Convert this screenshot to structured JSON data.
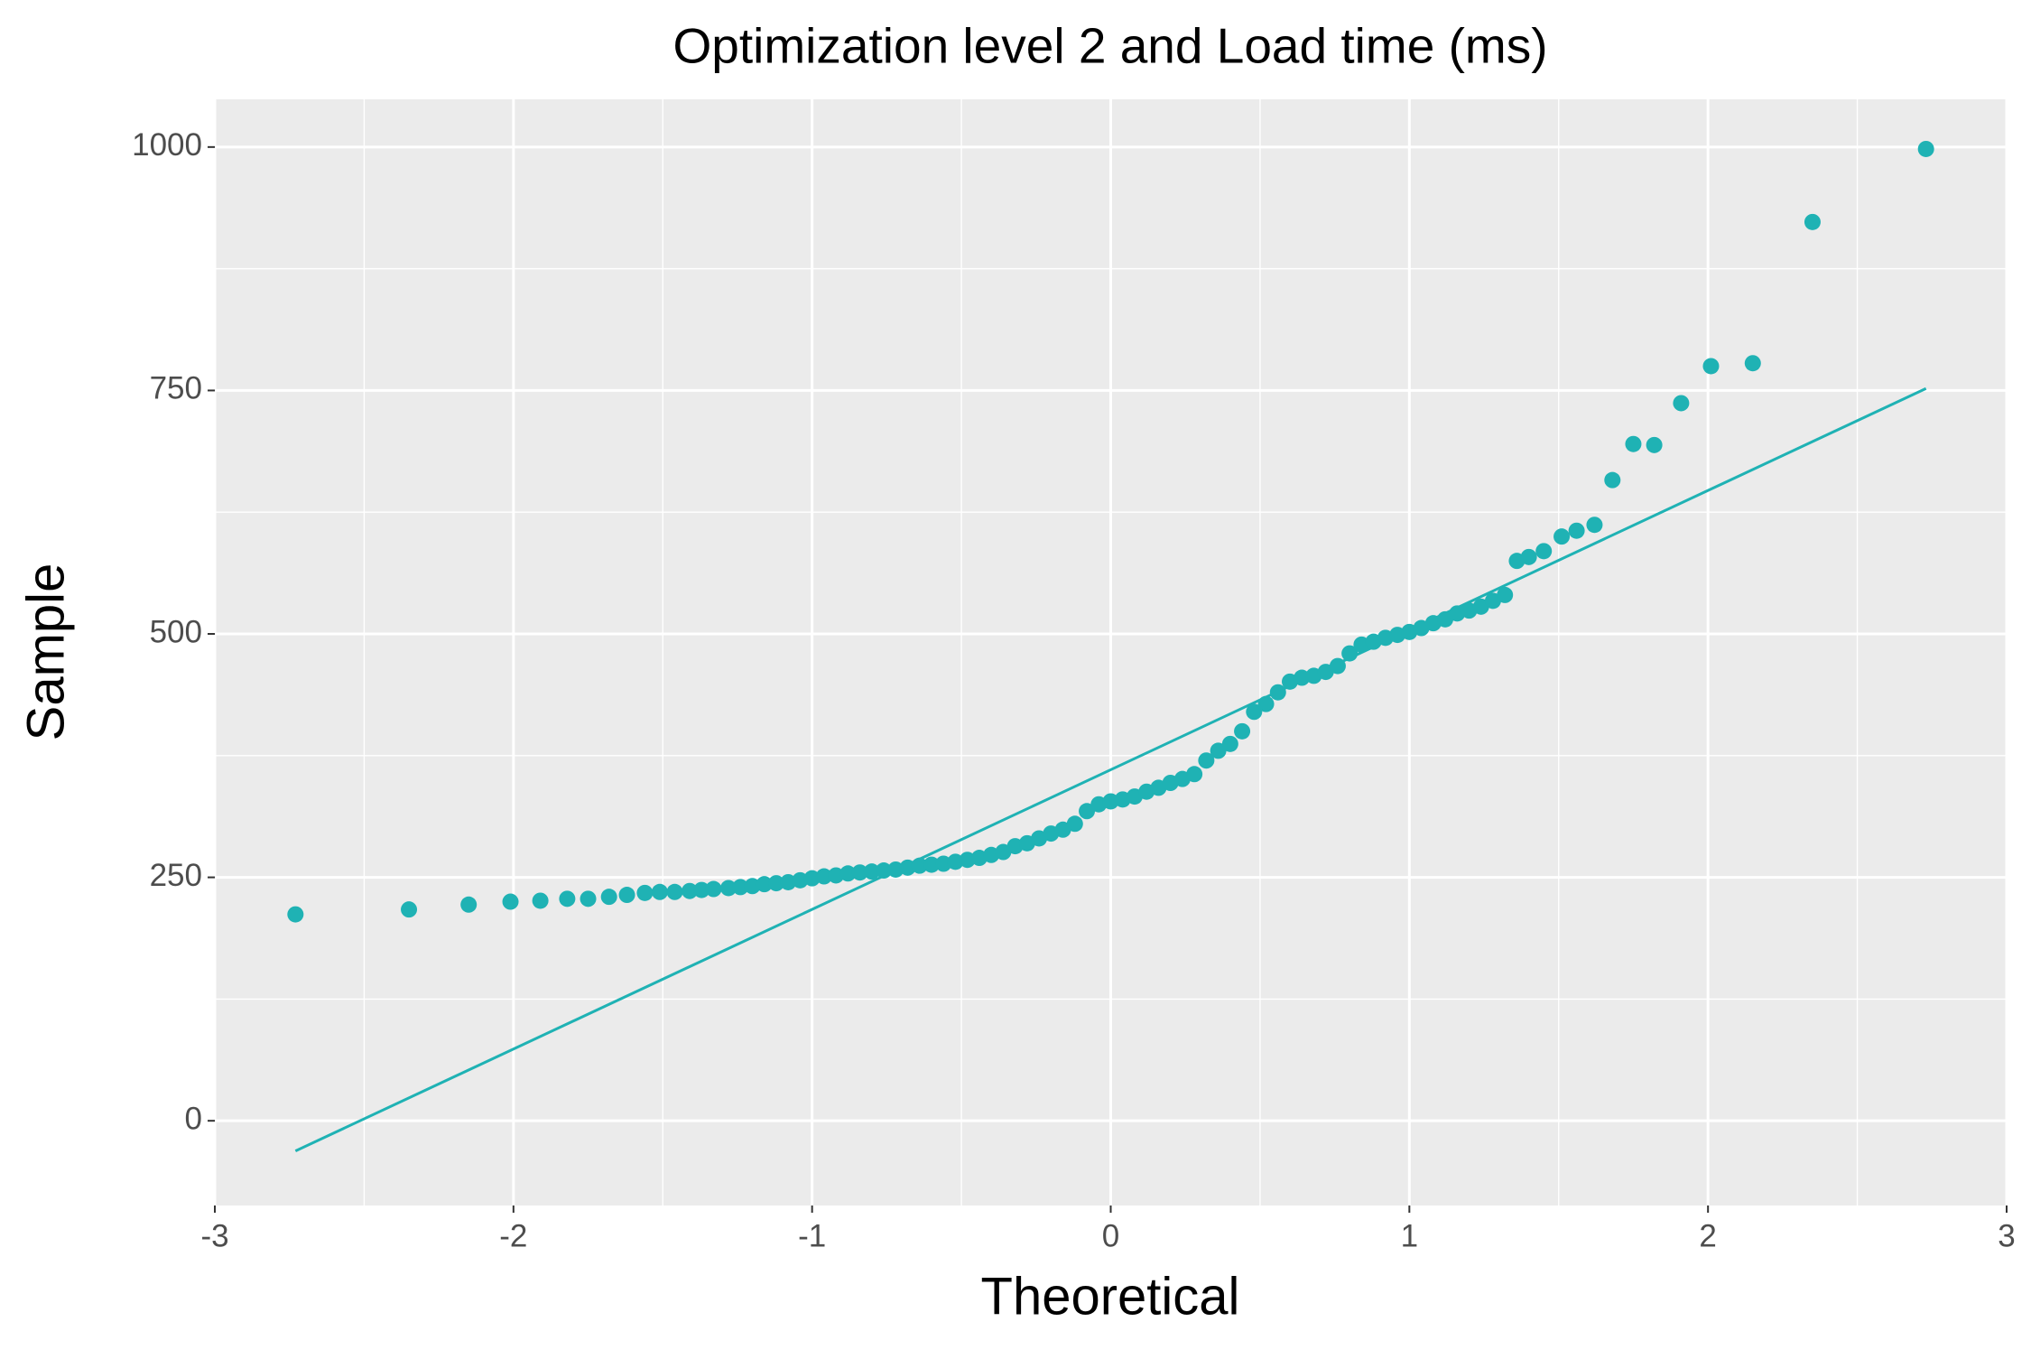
{
  "chart_data": {
    "type": "scatter",
    "title": "Optimization level 2 and Load time (ms)",
    "x_label": "Theoretical",
    "y_label": "Sample",
    "xlim": [
      -3,
      3
    ],
    "ylim": [
      -87,
      1049
    ],
    "xticks": [
      -3,
      -2,
      -1,
      0,
      1,
      2,
      3
    ],
    "yticks": [
      0,
      250,
      500,
      750,
      1000
    ],
    "grid": true,
    "color": "#1fb2b4",
    "x": [
      -2.73,
      -2.35,
      -2.15,
      -2.01,
      -1.91,
      -1.82,
      -1.75,
      -1.68,
      -1.62,
      -1.56,
      -1.51,
      -1.46,
      -1.41,
      -1.37,
      -1.33,
      -1.28,
      -1.24,
      -1.2,
      -1.16,
      -1.12,
      -1.08,
      -1.04,
      -1.0,
      -0.96,
      -0.92,
      -0.88,
      -0.84,
      -0.8,
      -0.76,
      -0.72,
      -0.68,
      -0.64,
      -0.6,
      -0.56,
      -0.52,
      -0.48,
      -0.44,
      -0.4,
      -0.36,
      -0.32,
      -0.28,
      -0.24,
      -0.2,
      -0.16,
      -0.12,
      -0.08,
      -0.04,
      0.0,
      0.04,
      0.08,
      0.12,
      0.16,
      0.2,
      0.24,
      0.28,
      0.32,
      0.36,
      0.4,
      0.44,
      0.48,
      0.52,
      0.56,
      0.6,
      0.64,
      0.68,
      0.72,
      0.76,
      0.8,
      0.84,
      0.88,
      0.92,
      0.96,
      1.0,
      1.04,
      1.08,
      1.12,
      1.16,
      1.2,
      1.24,
      1.28,
      1.32,
      1.36,
      1.4,
      1.45,
      1.51,
      1.56,
      1.62,
      1.68,
      1.75,
      1.82,
      1.91,
      2.01,
      2.15,
      2.35,
      2.73
    ],
    "values": [
      212,
      217,
      222,
      225,
      226,
      228,
      228,
      230,
      232,
      234,
      235,
      235,
      236,
      237,
      238,
      239,
      240,
      241,
      243,
      244,
      245,
      247,
      249,
      251,
      252,
      254,
      255,
      256,
      257,
      258,
      260,
      262,
      263,
      264,
      266,
      268,
      270,
      273,
      276,
      282,
      285,
      290,
      295,
      299,
      305,
      318,
      325,
      328,
      330,
      333,
      338,
      342,
      347,
      351,
      356,
      370,
      380,
      387,
      400,
      420,
      428,
      440,
      451,
      455,
      457,
      461,
      467,
      480,
      489,
      492,
      496,
      499,
      502,
      506,
      511,
      515,
      521,
      524,
      528,
      534,
      540,
      575,
      579,
      585,
      600,
      606,
      612,
      658,
      695,
      694,
      737,
      775,
      778,
      923,
      998
    ],
    "reference_line": {
      "x": [
        -2.73,
        2.73
      ],
      "values": [
        -31,
        752
      ]
    }
  }
}
